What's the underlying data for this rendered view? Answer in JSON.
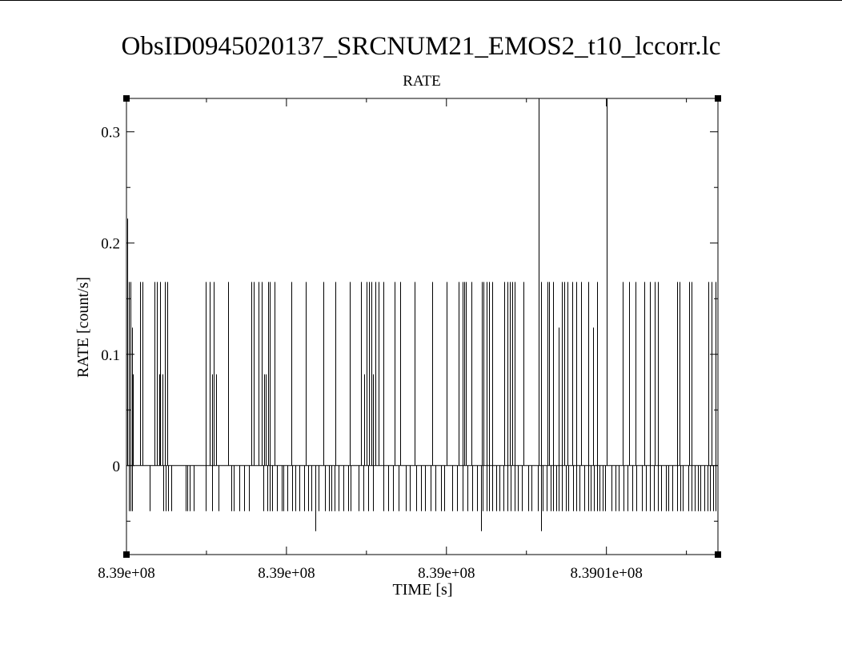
{
  "chart_data": {
    "type": "line",
    "drawstyle": "steps-mid",
    "title": "ObsID0945020137_SRCNUM21_EMOS2_t10_lccorr.lc",
    "subtitle": "RATE",
    "xlabel": "TIME [s]",
    "ylabel": "RATE [count/s]",
    "xlim": [
      838997800,
      839010000
    ],
    "ylim": [
      -0.08,
      0.33
    ],
    "x_tick_values": [
      838997800,
      839001100,
      839004400,
      839007700
    ],
    "x_tick_labels": [
      "8.39e+08",
      "8.39e+08",
      "8.39e+08",
      "8.3901e+08"
    ],
    "y_tick_values": [
      0,
      0.1,
      0.2,
      0.3
    ],
    "y_tick_labels": [
      "0",
      "0.1",
      "0.2",
      "0.3"
    ],
    "grid": false,
    "legend": "none",
    "bin_size_s": 10,
    "baseline": 0,
    "series": [
      {
        "color": "#000000",
        "dip_level": -0.041,
        "deep_dip_level": -0.059,
        "x": [
          838997810,
          838997820,
          838997850,
          838997890,
          838997920,
          838997940,
          838998080,
          838998130,
          838998370,
          838998420,
          838998480,
          838998500,
          838998540,
          838998590,
          838998650,
          838999430,
          838999510,
          838999560,
          838999600,
          838999650,
          838999890,
          839000380,
          839000430,
          839000520,
          839000590,
          839000640,
          839000680,
          839000720,
          839000760,
          839000860,
          839001200,
          839001500,
          839001860,
          839002110,
          839002400,
          839002640,
          839002700,
          839002750,
          839002800,
          839002850,
          839002890,
          839002940,
          839003000,
          839003100,
          839003330,
          839003450,
          839003750,
          839004100,
          839004400,
          839004650,
          839004730,
          839004770,
          839004800,
          839004920,
          839005130,
          839005170,
          839005230,
          839005280,
          839005350,
          839005600,
          839005650,
          839005700,
          839005750,
          839005800,
          839005990,
          839006300,
          839006350,
          839006480,
          839006510,
          839006600,
          839006720,
          839006780,
          839006830,
          839006900,
          839006990,
          839007080,
          839007180,
          839007320,
          839007420,
          839007500,
          839007700,
          839008030,
          839008160,
          839008300,
          839008480,
          839008600,
          839008700,
          839008770,
          839009150,
          839009200,
          839009400,
          839009450,
          839009800,
          839009870,
          839009950
        ],
        "y": [
          0.165,
          0.222,
          0.165,
          0.165,
          0.124,
          0.082,
          0.165,
          0.165,
          0.165,
          0.165,
          0.082,
          0.165,
          0.082,
          0.165,
          0.165,
          0.165,
          0.165,
          0.082,
          0.165,
          0.082,
          0.165,
          0.165,
          0.165,
          0.165,
          0.165,
          0.082,
          0.082,
          0.165,
          0.165,
          0.165,
          0.165,
          0.165,
          0.165,
          0.165,
          0.165,
          0.165,
          0.082,
          0.165,
          0.165,
          0.165,
          0.082,
          0.165,
          0.165,
          0.165,
          0.165,
          0.165,
          0.165,
          0.165,
          0.165,
          0.165,
          0.165,
          0.165,
          0.165,
          0.165,
          0.165,
          0.165,
          0.165,
          0.165,
          0.165,
          0.165,
          0.165,
          0.165,
          0.165,
          0.165,
          0.165,
          0.33,
          0.165,
          0.165,
          0.165,
          0.165,
          0.124,
          0.165,
          0.165,
          0.165,
          0.165,
          0.165,
          0.165,
          0.165,
          0.124,
          0.165,
          0.33,
          0.165,
          0.165,
          0.165,
          0.165,
          0.165,
          0.165,
          0.165,
          0.165,
          0.165,
          0.165,
          0.165,
          0.165,
          0.165,
          0.165
        ],
        "dips": [
          838997850,
          838997880,
          838997910,
          838998280,
          838998560,
          838998610,
          838998660,
          838998720,
          838999020,
          838999060,
          838999100,
          838999180,
          838999440,
          838999560,
          838999700,
          838999960,
          839000020,
          839000120,
          839000220,
          839000330,
          839000620,
          839000700,
          839000760,
          839000800,
          839000900,
          839001000,
          839001030,
          839001120,
          839001210,
          839001280,
          839001360,
          839001460,
          839001540,
          839001620,
          839001700,
          839001760,
          839001900,
          839001970,
          839002030,
          839002100,
          839002170,
          839002270,
          839002370,
          839002420,
          839002580,
          839002680,
          839002790,
          839002890,
          839003100,
          839003200,
          839003300,
          839003420,
          839003560,
          839003650,
          839003780,
          839003880,
          839003960,
          839004080,
          839004180,
          839004280,
          839004360,
          839004520,
          839004620,
          839004730,
          839004830,
          839004930,
          839005030,
          839005150,
          839005230,
          839005280,
          839005350,
          839005420,
          839005500,
          839005580,
          839005650,
          839005720,
          839005800,
          839005870,
          839005950,
          839006080,
          839006160,
          839006280,
          839006380,
          839006470,
          839006550,
          839006600,
          839006660,
          839006720,
          839006780,
          839006860,
          839006920,
          839007020,
          839007080,
          839007140,
          839007240,
          839007320,
          839007380,
          839007440,
          839007500,
          839007550,
          839007620,
          839007680,
          839007800,
          839007880,
          839007960,
          839008050,
          839008140,
          839008230,
          839008310,
          839008430,
          839008520,
          839008600,
          839008680,
          839008770,
          839008830,
          839008920,
          839008980,
          839009060,
          839009160,
          839009220,
          839009280,
          839009390,
          839009450,
          839009520,
          839009580,
          839009640,
          839009720,
          839009780,
          839009840,
          839009900,
          839009950
        ],
        "deep_dips": [
          839001700,
          839005120,
          839006350
        ]
      }
    ]
  }
}
